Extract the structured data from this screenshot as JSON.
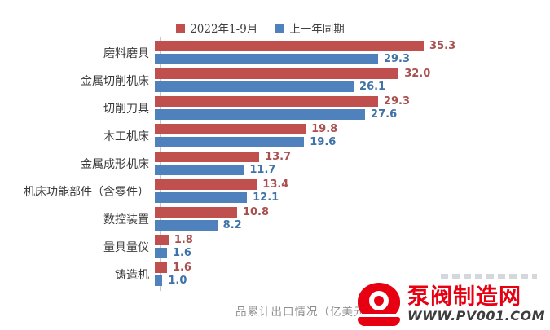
{
  "legend": {
    "items": [
      {
        "label": "2022年1-9月",
        "color": "#c0504d"
      },
      {
        "label": "上一年同期",
        "color": "#4f81bd"
      }
    ]
  },
  "chart_data": {
    "type": "bar",
    "orientation": "horizontal",
    "caption": "品累计出口情况（亿美元）",
    "unit": "亿美元",
    "grid": false,
    "legend_position": "top",
    "xlim": [
      0,
      38
    ],
    "categories": [
      "磨料磨具",
      "金属切削机床",
      "切削刀具",
      "木工机床",
      "金属成形机床",
      "机床功能部件（含零件）",
      "数控装置",
      "量具量仪",
      "铸造机"
    ],
    "series": [
      {
        "name": "2022年1-9月",
        "color": "#c0504d",
        "label_color": "#a8504e",
        "values": [
          35.3,
          32.0,
          29.3,
          19.8,
          13.7,
          13.4,
          10.8,
          1.8,
          1.6
        ],
        "labels": [
          "35.3",
          "32.0",
          "29.3",
          "19.8",
          "13.7",
          "13.4",
          "10.8",
          "1.8",
          "1.6"
        ]
      },
      {
        "name": "上一年同期",
        "color": "#4f81bd",
        "label_color": "#3f72a8",
        "values": [
          29.3,
          26.1,
          27.6,
          19.6,
          11.7,
          12.1,
          8.2,
          1.6,
          1.0
        ],
        "labels": [
          "29.3",
          "26.1",
          "27.6",
          "19.6",
          "11.7",
          "12.1",
          "8.2",
          "1.6",
          "1.0"
        ]
      }
    ]
  },
  "footer_logo": {
    "brand": "泵阀制造网",
    "url": "WWW.PV001.COM"
  }
}
